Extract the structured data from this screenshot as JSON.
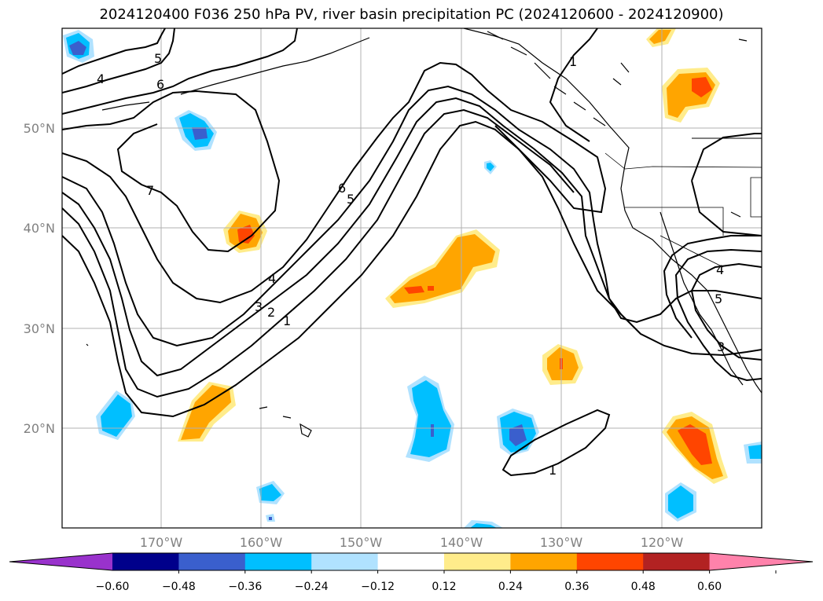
{
  "title": "2024120400 F036 250 hPa PV, river basin precipitation PC (2024120600 - 2024120900)",
  "map": {
    "lat_labels": [
      "50°N",
      "40°N",
      "30°N",
      "20°N"
    ],
    "lon_labels": [
      "170°W",
      "160°W",
      "150°W",
      "140°W",
      "130°W",
      "120°W"
    ],
    "grid_color": "#b0b0b0",
    "coast_color": "#000000"
  },
  "contour_labels": [
    "5",
    "4",
    "6",
    "7",
    "6",
    "5",
    "4",
    "3",
    "2",
    "1",
    "1",
    "1",
    "4",
    "5",
    "3"
  ],
  "colorbar": {
    "ticks": [
      "−0.60",
      "−0.48",
      "−0.36",
      "−0.24",
      "−0.12",
      "0.12",
      "0.24",
      "0.36",
      "0.48",
      "0.60"
    ],
    "colors": [
      "#9932cc",
      "#00008b",
      "#3a5fcd",
      "#00bfff",
      "#b0e2ff",
      "#ffffff",
      "#ffec8b",
      "#ffa500",
      "#ff4500",
      "#b22222",
      "#ff82ab"
    ]
  }
}
